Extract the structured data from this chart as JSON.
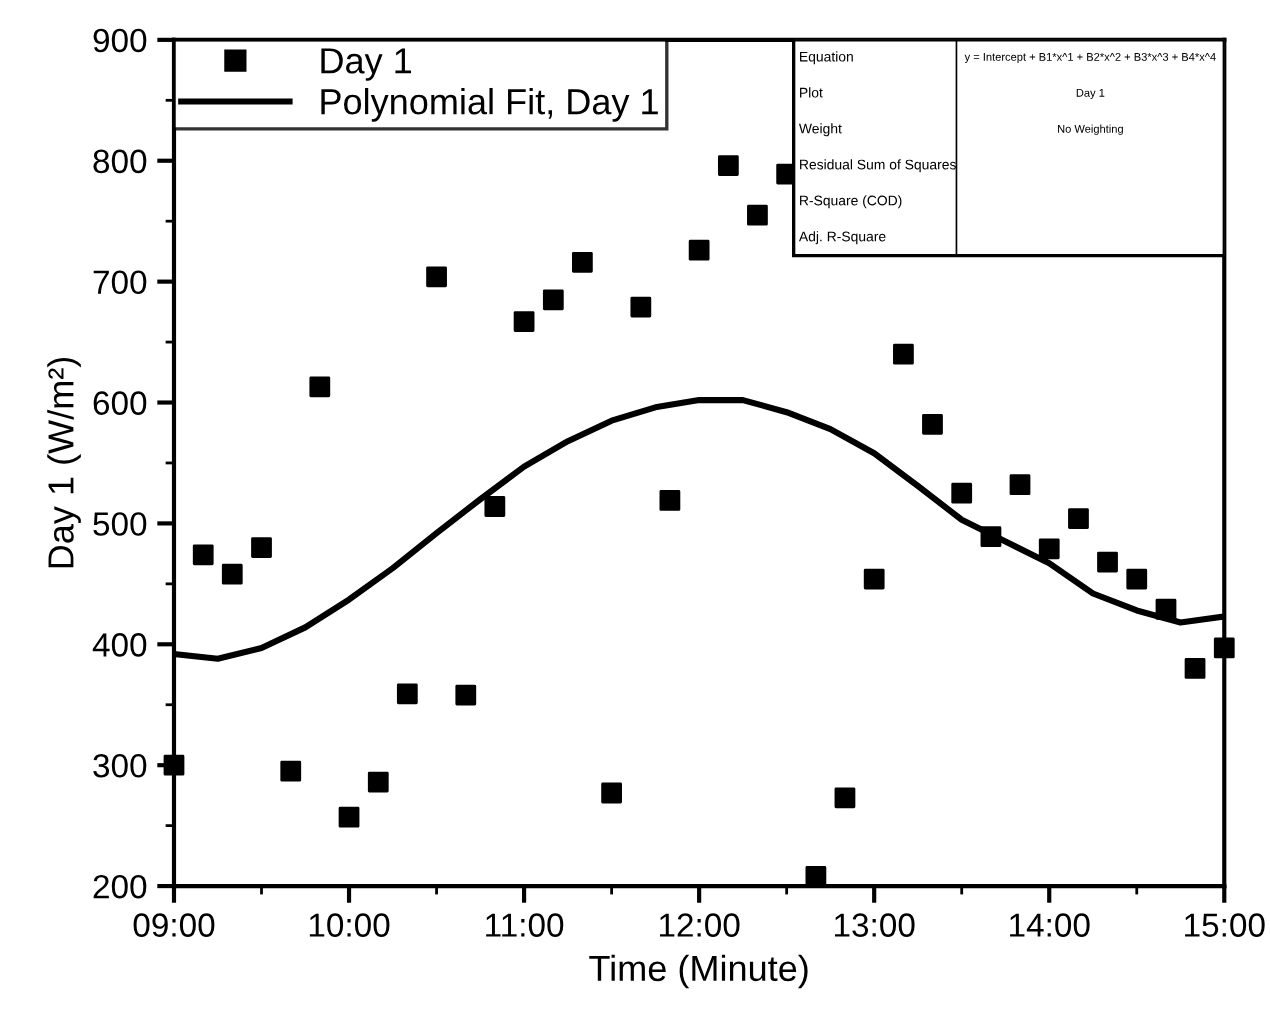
{
  "chart_data": {
    "type": "scatter",
    "xlabel": "Time (Minute)",
    "ylabel": "Day 1 (W/m²)",
    "xlim": [
      9,
      15
    ],
    "ylim": [
      200,
      900
    ],
    "xticks": [
      {
        "value": 9,
        "label": "09:00"
      },
      {
        "value": 10,
        "label": "10:00"
      },
      {
        "value": 11,
        "label": "11:00"
      },
      {
        "value": 12,
        "label": "12:00"
      },
      {
        "value": 13,
        "label": "13:00"
      },
      {
        "value": 14,
        "label": "14:00"
      },
      {
        "value": 15,
        "label": "15:00"
      }
    ],
    "yticks": [
      200,
      300,
      400,
      500,
      600,
      700,
      800,
      900
    ],
    "grid": false,
    "legend": "top left",
    "series": [
      {
        "name": "Day 1",
        "marker": "square",
        "color": "#000000",
        "x": [
          9.0,
          9.167,
          9.333,
          9.5,
          9.667,
          9.833,
          10.0,
          10.167,
          10.333,
          10.5,
          10.667,
          10.833,
          11.0,
          11.167,
          11.333,
          11.5,
          11.667,
          11.833,
          12.0,
          12.167,
          12.333,
          12.5,
          12.667,
          12.833,
          13.0,
          13.167,
          13.333,
          13.5,
          13.667,
          13.833,
          14.0,
          14.167,
          14.333,
          14.5,
          14.667,
          14.833,
          15.0
        ],
        "values": [
          300,
          474,
          458,
          480,
          295,
          613,
          257,
          286,
          359,
          704,
          358,
          514,
          667,
          685,
          716,
          277,
          679,
          519,
          726,
          796,
          755,
          789,
          208,
          273,
          454,
          640,
          582,
          525,
          489,
          532,
          479,
          504,
          468,
          454,
          429,
          380,
          397
        ]
      },
      {
        "name": "Polynomial Fit, Day 1",
        "type": "line",
        "marker": "none",
        "line_style": "solid",
        "color": "#000000",
        "x": [
          9.0,
          9.25,
          9.5,
          9.75,
          10.0,
          10.25,
          10.5,
          10.75,
          11.0,
          11.25,
          11.5,
          11.75,
          12.0,
          12.25,
          12.5,
          12.75,
          13.0,
          13.25,
          13.5,
          13.75,
          14.0,
          14.25,
          14.5,
          14.75,
          15.0
        ],
        "values": [
          392,
          388,
          397,
          414,
          437,
          463,
          492,
          520,
          547,
          568,
          585,
          596,
          602,
          602,
          592,
          578,
          558,
          531,
          503,
          485,
          467,
          442,
          428,
          418,
          423
        ]
      }
    ],
    "annotations": [
      "Equation",
      "y = Intercept + B1*x^1 + B2*x^2 + B3*x^3 + B4*x^4",
      "Plot",
      "Day 1",
      "Weight",
      "No Weighting",
      "Residual Sum of Squares",
      "R-Square (COD)",
      "Adj. R-Square"
    ]
  }
}
